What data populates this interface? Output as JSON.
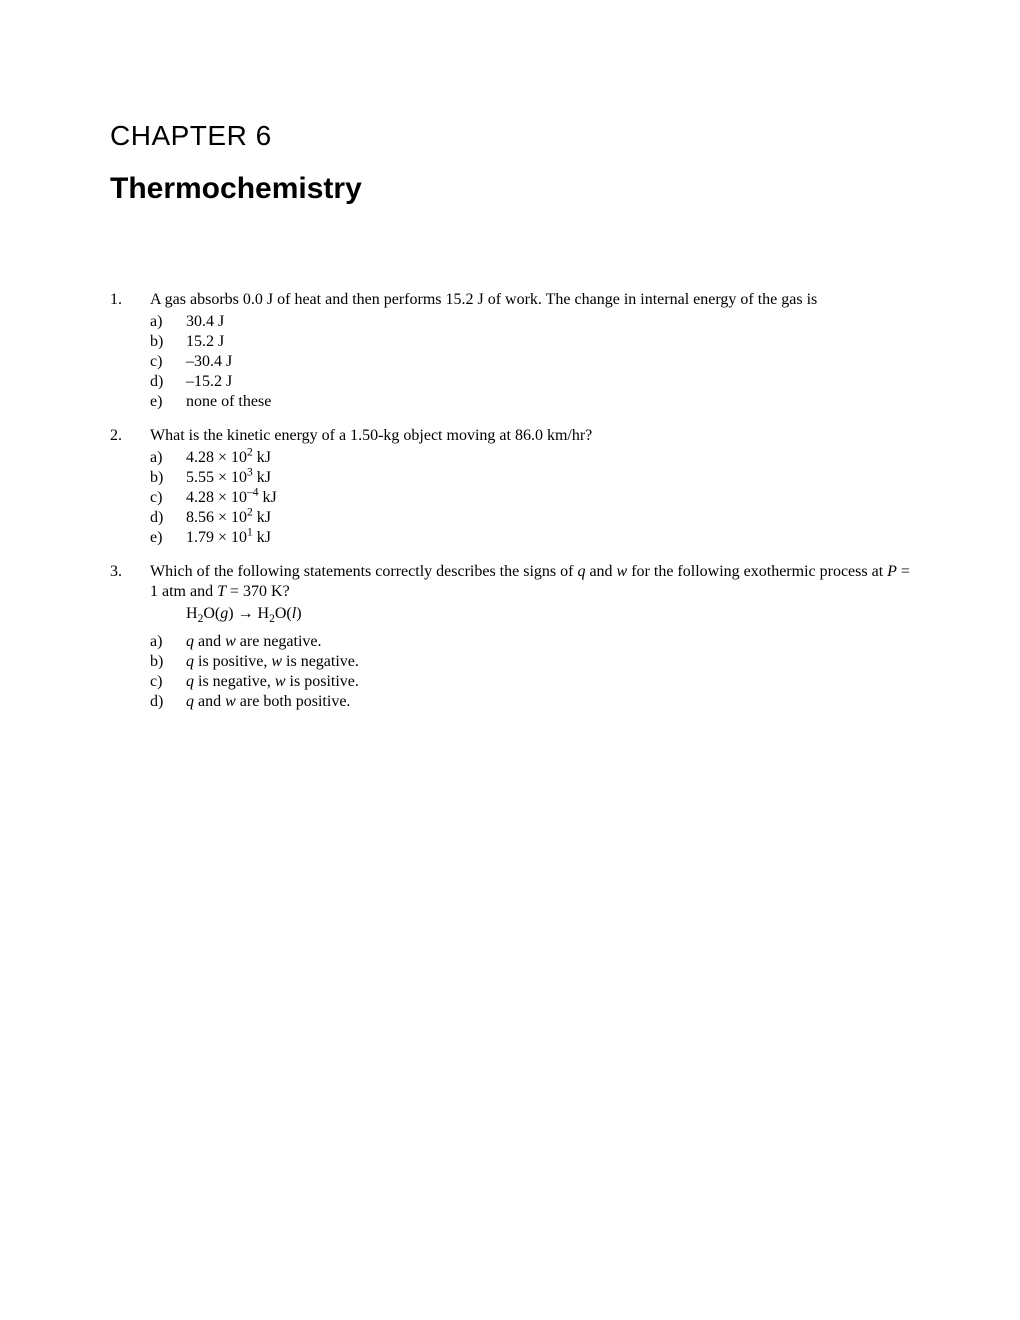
{
  "chapter_label": "CHAPTER 6",
  "chapter_title": "Thermochemistry",
  "questions": [
    {
      "num": "1.",
      "stem_html": "A gas absorbs 0.0 J of heat and then performs 15.2 J of work. The change in internal energy of the gas is",
      "equation_html": "",
      "options": [
        {
          "label": "a)",
          "html": "30.4 J"
        },
        {
          "label": "b)",
          "html": "15.2 J"
        },
        {
          "label": "c)",
          "html": "–30.4 J"
        },
        {
          "label": "d)",
          "html": "–15.2 J"
        },
        {
          "label": "e)",
          "html": "none of these"
        }
      ]
    },
    {
      "num": "2.",
      "stem_html": "What is the kinetic energy of a 1.50-kg object moving at 86.0 km/hr?",
      "equation_html": "",
      "options": [
        {
          "label": "a)",
          "html": "4.28 × 10<sup>2</sup> kJ"
        },
        {
          "label": "b)",
          "html": "5.55 × 10<sup>3</sup> kJ"
        },
        {
          "label": "c)",
          "html": "4.28 × 10<sup>–4</sup> kJ"
        },
        {
          "label": "d)",
          "html": "8.56 × 10<sup>2</sup> kJ"
        },
        {
          "label": "e)",
          "html": "1.79 × 10<sup>1</sup> kJ"
        }
      ]
    },
    {
      "num": "3.",
      "stem_html": "Which of the following statements correctly describes the signs of <i>q</i> and <i>w</i> for the following exothermic process at <i>P</i> = 1 atm and <i>T</i> = 370 K?",
      "equation_html": "H<sub>2</sub>O(<i>g</i>) → H<sub>2</sub>O(<i>l</i>)",
      "options": [
        {
          "label": "a)",
          "html": "<i>q</i> and <i>w</i> are negative."
        },
        {
          "label": "b)",
          "html": "<i>q</i> is positive, <i>w</i> is negative."
        },
        {
          "label": "c)",
          "html": "<i>q</i> is negative, <i>w</i> is positive."
        },
        {
          "label": "d)",
          "html": "<i>q</i> and <i>w</i> are both positive."
        }
      ]
    }
  ]
}
